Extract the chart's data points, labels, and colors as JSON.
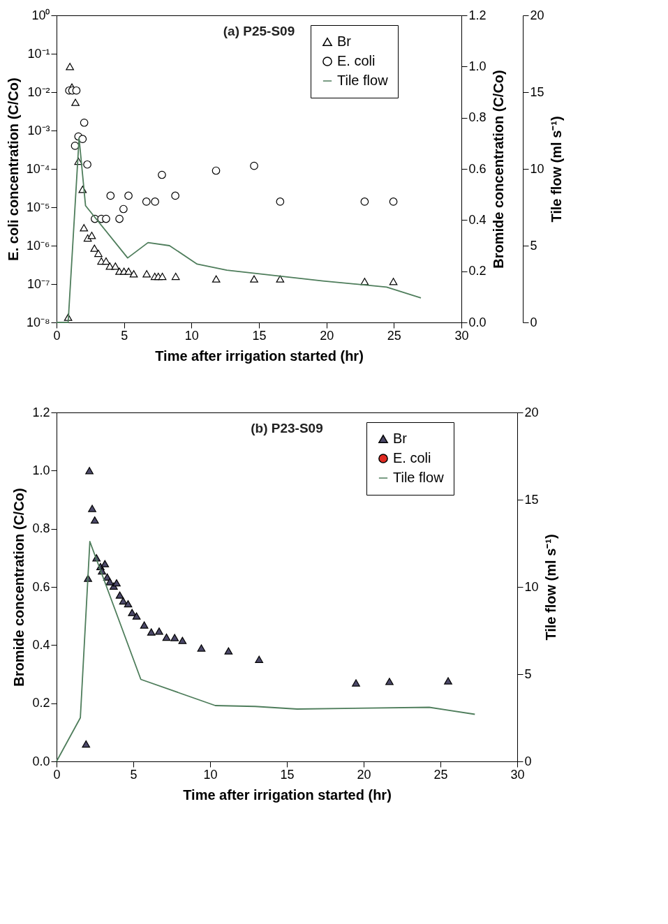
{
  "chart_data": [
    {
      "type": "scatter",
      "title": "(a) P25-S09",
      "xlabel": "Time after irrigation started (hr)",
      "ylabel": "E. coli concentration (C/Co)",
      "y2label": "Bromide concentration (C/Co)",
      "y3label": "Tile flow (ml s⁻¹)",
      "xlim": [
        0,
        30
      ],
      "xticks": [
        0,
        5,
        10,
        15,
        20,
        25,
        30
      ],
      "ylim": [
        1e-08,
        1
      ],
      "log": "y",
      "yticks": [
        {
          "value": 1,
          "label": "10⁰"
        },
        {
          "value": 0.1,
          "label": "10⁻¹"
        },
        {
          "value": 0.01,
          "label": "10⁻²"
        },
        {
          "value": 0.001,
          "label": "10⁻³"
        },
        {
          "value": 0.0001,
          "label": "10⁻⁴"
        },
        {
          "value": 1e-05,
          "label": "10⁻⁵"
        },
        {
          "value": 1e-06,
          "label": "10⁻⁶"
        },
        {
          "value": 1e-07,
          "label": "10⁻⁷"
        },
        {
          "value": 1e-08,
          "label": "10⁻⁸"
        }
      ],
      "y2lim": [
        0,
        1.2
      ],
      "y2ticks": [
        {
          "value": 0,
          "label": "0.0"
        },
        {
          "value": 0.2,
          "label": "0.2"
        },
        {
          "value": 0.4,
          "label": "0.4"
        },
        {
          "value": 0.6,
          "label": "0.6"
        },
        {
          "value": 0.8,
          "label": "0.8"
        },
        {
          "value": 1,
          "label": "1.0"
        },
        {
          "value": 1.2,
          "label": "1.2"
        }
      ],
      "y3lim": [
        0,
        20
      ],
      "y3ticks": [
        0,
        5,
        10,
        15,
        20
      ],
      "legend": "top right",
      "series": [
        {
          "name": "Br",
          "type": "scatter",
          "marker": "triangle",
          "color": "#ffffff",
          "axis": "y2",
          "x": [
            0.86,
            0.99,
            1.14,
            1.4,
            1.62,
            1.93,
            2.03,
            2.31,
            2.61,
            2.81,
            3.1,
            3.32,
            3.67,
            3.95,
            4.36,
            4.66,
            5.0,
            5.34,
            5.72,
            6.68,
            7.28,
            7.54,
            7.84,
            8.83,
            11.83,
            14.64,
            16.57,
            22.83,
            24.96
          ],
          "values": [
            0.02,
            1.0,
            0.92,
            0.86,
            0.63,
            0.52,
            0.37,
            0.33,
            0.34,
            0.29,
            0.27,
            0.24,
            0.24,
            0.22,
            0.22,
            0.2,
            0.2,
            0.2,
            0.19,
            0.19,
            0.18,
            0.18,
            0.18,
            0.18,
            0.17,
            0.17,
            0.17,
            0.16,
            0.16
          ]
        },
        {
          "name": "E. coli",
          "type": "scatter",
          "marker": "circle",
          "color": "#ffffff",
          "axis": "y",
          "x": [
            0.94,
            1.17,
            1.37,
            1.47,
            1.62,
            1.93,
            2.05,
            2.28,
            2.84,
            3.32,
            3.67,
            4.0,
            4.66,
            4.96,
            5.33,
            6.66,
            7.3,
            7.81,
            8.8,
            11.82,
            14.64,
            16.57,
            22.83,
            24.96
          ],
          "values": [
            0.011,
            0.011,
            0.0004,
            0.011,
            0.0007,
            0.0006,
            0.0016,
            0.00013,
            5e-06,
            5e-06,
            5e-06,
            2e-05,
            5e-06,
            9e-06,
            2e-05,
            1.4e-05,
            1.4e-05,
            7e-05,
            2e-05,
            9e-05,
            0.00012,
            1.4e-05,
            1.4e-05,
            1.4e-05
          ]
        },
        {
          "name": "Tile flow",
          "type": "line",
          "color": "#4e7d5b",
          "axis": "y3",
          "x": [
            0,
            0.86,
            1.67,
            2.15,
            5.27,
            6.78,
            8.37,
            10.42,
            12.62,
            19.75,
            24.46,
            27.0
          ],
          "values": [
            0,
            0,
            12.0,
            7.6,
            4.2,
            5.2,
            5.0,
            3.8,
            3.4,
            2.7,
            2.3,
            1.6
          ]
        }
      ]
    },
    {
      "type": "scatter",
      "title": "(b) P23-S09",
      "xlabel": "Time after irrigation started (hr)",
      "ylabel": "Bromide concentration (C/Co)",
      "y2label": "Tile flow (ml s⁻¹)",
      "xlim": [
        0,
        30
      ],
      "xticks": [
        0,
        5,
        10,
        15,
        20,
        25,
        30
      ],
      "ylim": [
        0,
        1.2
      ],
      "yticks": [
        {
          "value": 0,
          "label": "0.0"
        },
        {
          "value": 0.2,
          "label": "0.2"
        },
        {
          "value": 0.4,
          "label": "0.4"
        },
        {
          "value": 0.6,
          "label": "0.6"
        },
        {
          "value": 0.8,
          "label": "0.8"
        },
        {
          "value": 1,
          "label": "1.0"
        },
        {
          "value": 1.2,
          "label": "1.2"
        }
      ],
      "y2lim": [
        0,
        20
      ],
      "y2ticks": [
        0,
        5,
        10,
        15,
        20
      ],
      "legend": "top right",
      "series": [
        {
          "name": "Br",
          "type": "scatter",
          "marker": "triangle",
          "color": "#4b4868",
          "x": [
            1.92,
            2.05,
            2.14,
            2.32,
            2.49,
            2.6,
            2.86,
            2.96,
            3.15,
            3.3,
            3.47,
            3.72,
            3.91,
            4.12,
            4.34,
            4.66,
            4.92,
            5.21,
            5.71,
            6.17,
            6.68,
            7.16,
            7.69,
            8.2,
            9.43,
            11.2,
            13.19,
            19.5,
            21.68,
            25.5
          ],
          "values": [
            0.06,
            0.63,
            1.0,
            0.87,
            0.83,
            0.7,
            0.67,
            0.655,
            0.68,
            0.634,
            0.618,
            0.603,
            0.614,
            0.572,
            0.552,
            0.542,
            0.512,
            0.5,
            0.469,
            0.445,
            0.448,
            0.427,
            0.426,
            0.416,
            0.39,
            0.38,
            0.351,
            0.27,
            0.275,
            0.277
          ]
        },
        {
          "name": "E. coli",
          "type": "scatter",
          "marker": "circle",
          "color": "#e02a22"
        },
        {
          "name": "Tile flow",
          "type": "line",
          "color": "#4e7d5b",
          "axis": "y2",
          "x": [
            0,
            1.55,
            2.17,
            5.49,
            10.34,
            12.93,
            15.67,
            24.27,
            27.24
          ],
          "values": [
            0,
            2.5,
            12.6,
            4.7,
            3.2,
            3.15,
            3.0,
            3.1,
            2.7
          ]
        }
      ]
    }
  ]
}
